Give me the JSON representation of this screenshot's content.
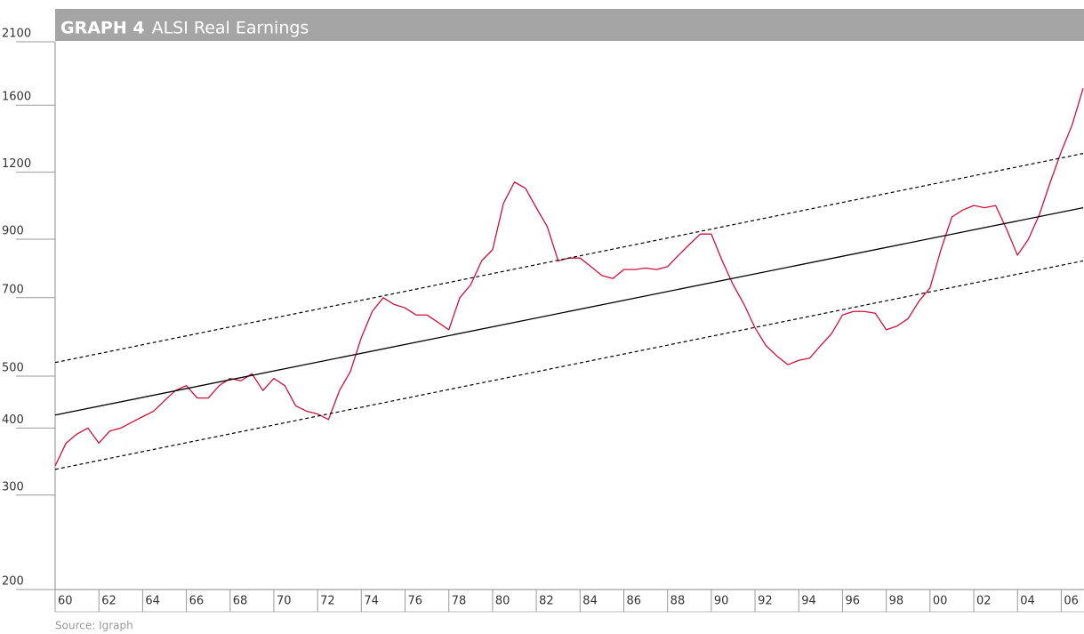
{
  "chart_data": {
    "type": "line",
    "title_label": "GRAPH 4",
    "title": "ALSI Real Earnings",
    "source": "Source: Igraph",
    "yscale": "log",
    "ylim": [
      200,
      2100
    ],
    "yticks": [
      200,
      300,
      400,
      500,
      700,
      900,
      1200,
      1600,
      2100
    ],
    "xlim": [
      1960,
      2007
    ],
    "xticks": [
      {
        "value": 1960,
        "label": "60"
      },
      {
        "value": 1962,
        "label": "62"
      },
      {
        "value": 1964,
        "label": "64"
      },
      {
        "value": 1966,
        "label": "66"
      },
      {
        "value": 1968,
        "label": "68"
      },
      {
        "value": 1970,
        "label": "70"
      },
      {
        "value": 1972,
        "label": "72"
      },
      {
        "value": 1974,
        "label": "74"
      },
      {
        "value": 1976,
        "label": "76"
      },
      {
        "value": 1978,
        "label": "78"
      },
      {
        "value": 1980,
        "label": "80"
      },
      {
        "value": 1982,
        "label": "82"
      },
      {
        "value": 1984,
        "label": "84"
      },
      {
        "value": 1986,
        "label": "86"
      },
      {
        "value": 1988,
        "label": "88"
      },
      {
        "value": 1990,
        "label": "90"
      },
      {
        "value": 1992,
        "label": "92"
      },
      {
        "value": 1994,
        "label": "94"
      },
      {
        "value": 1996,
        "label": "96"
      },
      {
        "value": 1998,
        "label": "98"
      },
      {
        "value": 2000,
        "label": "00"
      },
      {
        "value": 2002,
        "label": "02"
      },
      {
        "value": 2004,
        "label": "04"
      },
      {
        "value": 2006,
        "label": "06"
      }
    ],
    "series": [
      {
        "color": "#d0103a",
        "style": "solid",
        "x": [
          1960,
          1960.5,
          1961,
          1961.5,
          1962,
          1962.5,
          1963,
          1963.5,
          1964,
          1964.5,
          1965,
          1965.5,
          1966,
          1966.5,
          1967,
          1967.5,
          1968,
          1968.5,
          1969,
          1969.5,
          1970,
          1970.5,
          1971,
          1971.5,
          1972,
          1972.5,
          1973,
          1973.5,
          1974,
          1974.5,
          1975,
          1975.5,
          1976,
          1976.5,
          1977,
          1977.5,
          1978,
          1978.5,
          1979,
          1979.5,
          1980,
          1980.5,
          1981,
          1981.5,
          1982,
          1982.5,
          1983,
          1983.5,
          1984,
          1984.5,
          1985,
          1985.5,
          1986,
          1986.5,
          1987,
          1987.5,
          1988,
          1988.5,
          1989,
          1989.5,
          1990,
          1990.5,
          1991,
          1991.5,
          1992,
          1992.5,
          1993,
          1993.5,
          1994,
          1994.5,
          1995,
          1995.5,
          1996,
          1996.5,
          1997,
          1997.5,
          1998,
          1998.5,
          1999,
          1999.5,
          2000,
          2000.5,
          2001,
          2001.5,
          2002,
          2002.5,
          2003,
          2003.5,
          2004,
          2004.5,
          2005,
          2005.5,
          2006,
          2006.5,
          2007
        ],
        "values": [
          340,
          375,
          390,
          400,
          375,
          395,
          400,
          410,
          420,
          430,
          450,
          470,
          480,
          455,
          455,
          480,
          495,
          490,
          505,
          470,
          495,
          480,
          440,
          430,
          425,
          415,
          470,
          510,
          590,
          660,
          700,
          680,
          670,
          650,
          650,
          630,
          610,
          700,
          740,
          820,
          860,
          1050,
          1150,
          1120,
          1030,
          950,
          820,
          830,
          830,
          800,
          770,
          760,
          790,
          790,
          795,
          790,
          800,
          840,
          880,
          920,
          920,
          820,
          740,
          680,
          615,
          570,
          545,
          525,
          535,
          540,
          570,
          600,
          650,
          660,
          660,
          655,
          610,
          620,
          640,
          690,
          730,
          860,
          990,
          1020,
          1040,
          1030,
          1040,
          940,
          840,
          900,
          1000,
          1150,
          1310,
          1470,
          1720
        ]
      },
      {
        "color": "#000000",
        "style": "solid",
        "x": [
          1960,
          2007
        ],
        "values": [
          423,
          1030
        ]
      },
      {
        "color": "#000000",
        "style": "dashed",
        "x": [
          1960,
          2007
        ],
        "values": [
          530,
          1300
        ]
      },
      {
        "color": "#000000",
        "style": "dashed",
        "x": [
          1960,
          2007
        ],
        "values": [
          335,
          820
        ]
      }
    ]
  }
}
